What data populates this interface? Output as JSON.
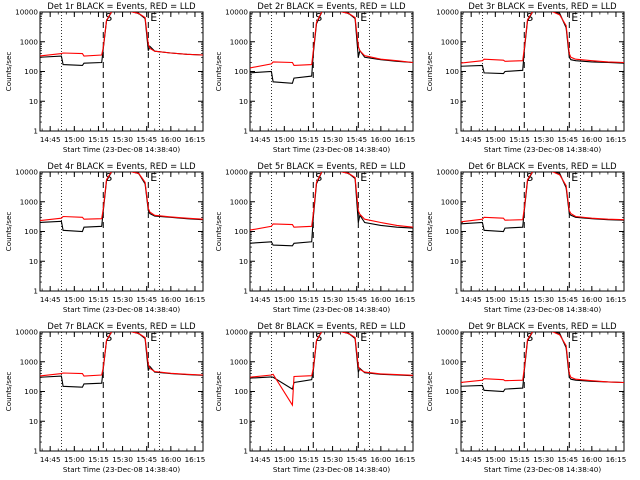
{
  "chart_data": {
    "type": "line",
    "layout": "3x3 grid",
    "legend": "in-title",
    "y_scale": "log",
    "ylim": [
      1,
      10000
    ],
    "ylabel": "Counts/sec",
    "xlabel": "Start Time (23-Dec-08 14:38:40)",
    "x_tick_labels": [
      "14:45",
      "15:00",
      "15:15",
      "15:30",
      "15:45",
      "16:00",
      "16:15"
    ],
    "x_tick_times": [
      "14:45",
      "15:00",
      "15:15",
      "15:30",
      "15:45",
      "16:00",
      "16:15"
    ],
    "y_tick_values": [
      1,
      10,
      100,
      1000,
      10000
    ],
    "y_tick_labels": [
      "1",
      "10",
      "100",
      "1000",
      "10000"
    ],
    "xlim": [
      "14:38:40",
      "16:20"
    ],
    "colors": {
      "events": "#000000",
      "lld": "#ff0000"
    },
    "markers": [
      {
        "label": "S",
        "time": "15:18",
        "style": "dashed"
      },
      {
        "label": "E",
        "time": "15:46",
        "style": "dashed"
      }
    ],
    "dotted_lines": [
      "14:52",
      "15:53"
    ],
    "time_points": [
      "14:38",
      "14:52",
      "14:53",
      "15:05",
      "15:06",
      "15:17",
      "15:18",
      "15:20",
      "15:24",
      "15:28",
      "15:32",
      "15:36",
      "15:40",
      "15:44",
      "15:46",
      "15:47",
      "15:50",
      "16:00",
      "16:10",
      "16:20"
    ],
    "panels": [
      {
        "title": "Det 1r BLACK = Events, RED = LLD",
        "events": [
          300,
          330,
          170,
          160,
          190,
          200,
          600,
          5000,
          12000,
          12000,
          11000,
          10000,
          9000,
          6000,
          500,
          700,
          480,
          420,
          380,
          360
        ],
        "lld": [
          330,
          400,
          420,
          400,
          330,
          360,
          650,
          5200,
          12000,
          12000,
          11000,
          10000,
          9000,
          6500,
          800,
          600,
          480,
          420,
          380,
          360
        ]
      },
      {
        "title": "Det 2r BLACK = Events, RED = LLD",
        "events": [
          90,
          100,
          45,
          40,
          60,
          70,
          400,
          4000,
          12000,
          12000,
          11000,
          10000,
          9000,
          6000,
          300,
          500,
          300,
          250,
          220,
          200
        ],
        "lld": [
          130,
          180,
          210,
          200,
          160,
          170,
          500,
          4500,
          12000,
          12000,
          11000,
          10000,
          9000,
          6500,
          700,
          500,
          340,
          260,
          230,
          200
        ]
      },
      {
        "title": "Det 3r BLACK = Events, RED = LLD",
        "events": [
          150,
          160,
          90,
          85,
          100,
          110,
          500,
          5000,
          12000,
          12000,
          11000,
          10000,
          9000,
          3000,
          300,
          250,
          230,
          210,
          200,
          190
        ],
        "lld": [
          190,
          230,
          260,
          240,
          220,
          230,
          600,
          5500,
          12000,
          12000,
          11000,
          10000,
          8000,
          3500,
          400,
          300,
          260,
          230,
          210,
          200
        ]
      },
      {
        "title": "Det 4r BLACK = Events, RED = LLD",
        "events": [
          200,
          220,
          110,
          100,
          140,
          150,
          500,
          5000,
          12000,
          12000,
          11000,
          10000,
          9000,
          4000,
          500,
          400,
          330,
          300,
          270,
          250
        ],
        "lld": [
          230,
          280,
          320,
          300,
          260,
          270,
          600,
          5500,
          12000,
          12000,
          11000,
          10000,
          9000,
          4500,
          600,
          450,
          350,
          310,
          280,
          260
        ]
      },
      {
        "title": "Det 5r BLACK = Events, RED = LLD",
        "events": [
          40,
          45,
          35,
          33,
          40,
          45,
          300,
          4000,
          12000,
          12000,
          11000,
          10000,
          9000,
          6000,
          200,
          350,
          200,
          160,
          140,
          130
        ],
        "lld": [
          110,
          150,
          180,
          170,
          140,
          150,
          400,
          4500,
          12000,
          12000,
          11000,
          10000,
          9000,
          6500,
          500,
          380,
          260,
          200,
          160,
          140
        ]
      },
      {
        "title": "Det 6r BLACK = Events, RED = LLD",
        "events": [
          180,
          200,
          110,
          100,
          130,
          140,
          500,
          5000,
          12000,
          12000,
          11000,
          10000,
          9000,
          3000,
          400,
          350,
          300,
          270,
          250,
          240
        ],
        "lld": [
          210,
          260,
          300,
          280,
          240,
          250,
          600,
          5500,
          12000,
          12000,
          11000,
          10000,
          8000,
          3500,
          500,
          400,
          320,
          280,
          260,
          250
        ]
      },
      {
        "title": "Det 7r BLACK = Events, RED = LLD",
        "events": [
          300,
          330,
          150,
          140,
          180,
          190,
          600,
          5000,
          12000,
          12000,
          11000,
          10000,
          9000,
          6000,
          500,
          700,
          450,
          400,
          370,
          350
        ],
        "lld": [
          330,
          400,
          420,
          400,
          330,
          360,
          650,
          5200,
          12000,
          12000,
          11000,
          10000,
          9000,
          6500,
          800,
          600,
          470,
          410,
          380,
          360
        ]
      },
      {
        "title": "Det 8r BLACK = Events, RED = LLD",
        "events": [
          280,
          310,
          300,
          120,
          200,
          250,
          500,
          5000,
          12000,
          12000,
          11000,
          10000,
          9000,
          6000,
          450,
          600,
          430,
          380,
          360,
          340
        ],
        "lld": [
          300,
          360,
          380,
          35,
          320,
          340,
          600,
          5200,
          12000,
          12000,
          11000,
          10000,
          9000,
          6500,
          700,
          550,
          450,
          390,
          370,
          350
        ]
      },
      {
        "title": "Det 9r BLACK = Events, RED = LLD",
        "events": [
          150,
          160,
          110,
          100,
          120,
          130,
          500,
          5000,
          12000,
          12000,
          11000,
          10000,
          9000,
          3000,
          300,
          260,
          240,
          220,
          210,
          200
        ],
        "lld": [
          200,
          240,
          270,
          250,
          230,
          240,
          600,
          5500,
          12000,
          12000,
          11000,
          10000,
          8000,
          3500,
          400,
          300,
          260,
          230,
          210,
          200
        ]
      }
    ]
  }
}
